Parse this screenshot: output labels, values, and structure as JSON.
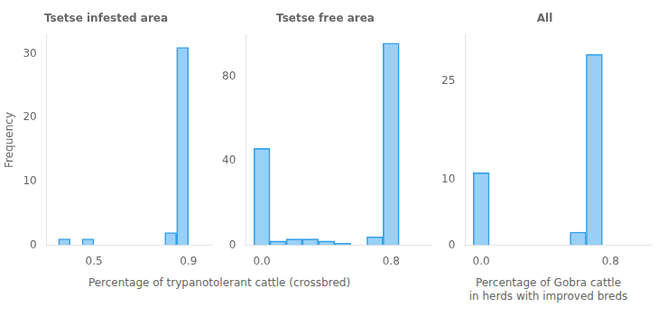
{
  "chart_data": [
    {
      "type": "histogram",
      "title": "Tsetse infested area",
      "ylabel": "Frequency",
      "xlabel": "Percentage of trypanotolerant cattle (crossbred)",
      "bins": [
        0.3,
        0.35,
        0.4,
        0.45,
        0.5,
        0.55,
        0.6,
        0.65,
        0.7,
        0.75,
        0.8,
        0.85,
        0.9,
        0.95,
        1.0
      ],
      "values": [
        0,
        1,
        0,
        1,
        0,
        0,
        0,
        0,
        0,
        0,
        2,
        31,
        0,
        0
      ],
      "xlim": [
        0.3,
        1.0
      ],
      "ylim": [
        0,
        33
      ],
      "xticks": [
        0.5,
        0.9
      ],
      "yticks": [
        0,
        10,
        20,
        30
      ],
      "grid": false
    },
    {
      "type": "histogram",
      "title": "Tsetse free area",
      "bins": [
        -0.05,
        0.05,
        0.15,
        0.25,
        0.35,
        0.45,
        0.55,
        0.65,
        0.75,
        0.85,
        0.95,
        1.05
      ],
      "values": [
        46,
        2,
        3,
        3,
        2,
        1,
        0,
        4,
        96,
        0,
        0
      ],
      "xlim": [
        -0.1,
        1.05
      ],
      "ylim": [
        0,
        100
      ],
      "xticks": [
        {
          "value": 0,
          "label": "0.0"
        },
        0.8
      ],
      "yticks": [
        0,
        40,
        80
      ],
      "grid": false
    },
    {
      "type": "histogram",
      "title": "All",
      "xlabel": "Percentage of Gobra cattle\nin herds with improved breds",
      "bins": [
        -0.05,
        0.05,
        0.15,
        0.25,
        0.35,
        0.45,
        0.55,
        0.65,
        0.75,
        0.85,
        0.95,
        1.05
      ],
      "values": [
        11,
        0,
        0,
        0,
        0,
        0,
        2,
        29,
        0,
        0,
        0
      ],
      "xlim": [
        -0.1,
        1.05
      ],
      "ylim": [
        0,
        32
      ],
      "xticks": [
        {
          "value": 0,
          "label": "0.0"
        },
        0.8
      ],
      "yticks": [
        0,
        10,
        25
      ],
      "grid": false
    }
  ]
}
